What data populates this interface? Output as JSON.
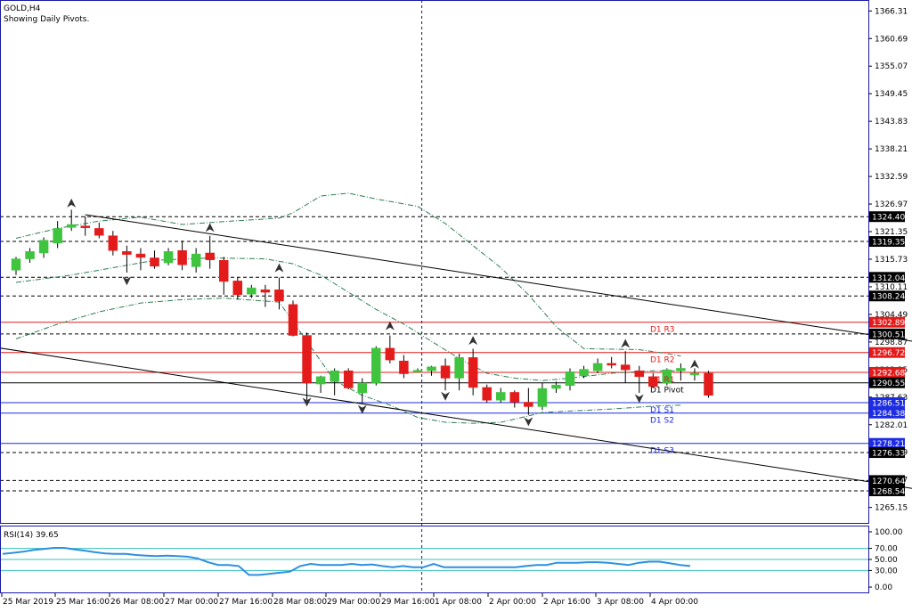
{
  "header": {
    "symbol": "GOLD,H4",
    "subtitle": "Showing Daily Pivots."
  },
  "colors": {
    "bull": "#3fc43f",
    "bear": "#e41b1b",
    "pivot_red": "#e41b1b",
    "pivot_blue": "#1d2ce0",
    "pivot_black": "#000000",
    "band": "#2e7d52",
    "rsi_line": "#2f8fe0",
    "rsi_levels": "#35c0c0",
    "frame": "#1a1aa6",
    "fractal": "#333333"
  },
  "chart_data": {
    "type": "candlestick",
    "symbol": "GOLD",
    "timeframe": "H4",
    "ylim": [
      1262.0,
      1368.0
    ],
    "y_ticks": [
      "1366.31",
      "1360.69",
      "1355.07",
      "1349.45",
      "1343.83",
      "1338.21",
      "1332.59",
      "1326.97",
      "1321.35",
      "1315.73",
      "1310.11",
      "1304.49",
      "1298.87",
      "1293.25",
      "1287.63",
      "1282.01",
      "1276.39",
      "1270.77",
      "1265.15"
    ],
    "x_labels": [
      "25 Mar 2019",
      "25 Mar 16:00",
      "26 Mar 08:00",
      "27 Mar 00:00",
      "27 Mar 16:00",
      "28 Mar 08:00",
      "29 Mar 00:00",
      "29 Mar 16:00",
      "1 Apr 08:00",
      "2 Apr 00:00",
      "2 Apr 16:00",
      "3 Apr 08:00",
      "4 Apr 00:00"
    ],
    "candles": [
      {
        "o": 1313.5,
        "h": 1316.2,
        "l": 1312.5,
        "c": 1315.8
      },
      {
        "o": 1315.8,
        "h": 1318.0,
        "l": 1315.0,
        "c": 1317.3
      },
      {
        "o": 1317.0,
        "h": 1320.2,
        "l": 1316.0,
        "c": 1319.6
      },
      {
        "o": 1319.0,
        "h": 1323.5,
        "l": 1318.0,
        "c": 1322.0
      },
      {
        "o": 1322.2,
        "h": 1325.8,
        "l": 1321.5,
        "c": 1322.8
      },
      {
        "o": 1322.5,
        "h": 1324.5,
        "l": 1320.5,
        "c": 1322.2
      },
      {
        "o": 1322.0,
        "h": 1323.2,
        "l": 1320.0,
        "c": 1320.6
      },
      {
        "o": 1320.5,
        "h": 1321.5,
        "l": 1316.5,
        "c": 1317.5
      },
      {
        "o": 1317.3,
        "h": 1318.5,
        "l": 1313.0,
        "c": 1316.7
      },
      {
        "o": 1316.8,
        "h": 1318.0,
        "l": 1313.5,
        "c": 1316.1
      },
      {
        "o": 1316.0,
        "h": 1317.5,
        "l": 1313.8,
        "c": 1314.3
      },
      {
        "o": 1315.0,
        "h": 1318.0,
        "l": 1314.5,
        "c": 1317.3
      },
      {
        "o": 1317.5,
        "h": 1319.5,
        "l": 1313.5,
        "c": 1314.6
      },
      {
        "o": 1314.2,
        "h": 1318.0,
        "l": 1313.0,
        "c": 1316.8
      },
      {
        "o": 1317.0,
        "h": 1320.5,
        "l": 1313.8,
        "c": 1315.6
      },
      {
        "o": 1315.5,
        "h": 1316.2,
        "l": 1308.5,
        "c": 1311.2
      },
      {
        "o": 1311.3,
        "h": 1312.0,
        "l": 1307.5,
        "c": 1308.5
      },
      {
        "o": 1308.6,
        "h": 1310.5,
        "l": 1307.8,
        "c": 1309.9
      },
      {
        "o": 1309.5,
        "h": 1310.5,
        "l": 1306.0,
        "c": 1309.0
      },
      {
        "o": 1309.5,
        "h": 1312.0,
        "l": 1305.5,
        "c": 1307.2
      },
      {
        "o": 1306.5,
        "h": 1307.3,
        "l": 1300.0,
        "c": 1300.2
      },
      {
        "o": 1300.2,
        "h": 1300.8,
        "l": 1287.0,
        "c": 1290.5
      },
      {
        "o": 1290.3,
        "h": 1292.0,
        "l": 1288.5,
        "c": 1291.8
      },
      {
        "o": 1290.8,
        "h": 1293.5,
        "l": 1288.0,
        "c": 1293.0
      },
      {
        "o": 1293.0,
        "h": 1293.5,
        "l": 1289.2,
        "c": 1289.5
      },
      {
        "o": 1288.5,
        "h": 1291.5,
        "l": 1286.5,
        "c": 1290.5
      },
      {
        "o": 1290.5,
        "h": 1298.0,
        "l": 1290.0,
        "c": 1297.6
      },
      {
        "o": 1297.6,
        "h": 1300.2,
        "l": 1294.5,
        "c": 1295.2
      },
      {
        "o": 1295.0,
        "h": 1296.2,
        "l": 1291.5,
        "c": 1292.4
      },
      {
        "o": 1293.0,
        "h": 1293.5,
        "l": 1292.7,
        "c": 1293.1
      },
      {
        "o": 1293.0,
        "h": 1294.0,
        "l": 1292.0,
        "c": 1293.8
      },
      {
        "o": 1294.0,
        "h": 1295.5,
        "l": 1289.0,
        "c": 1291.5
      },
      {
        "o": 1291.5,
        "h": 1296.5,
        "l": 1289.0,
        "c": 1295.7
      },
      {
        "o": 1295.7,
        "h": 1297.5,
        "l": 1288.0,
        "c": 1289.6
      },
      {
        "o": 1289.6,
        "h": 1290.2,
        "l": 1286.5,
        "c": 1287.0
      },
      {
        "o": 1287.0,
        "h": 1289.5,
        "l": 1286.5,
        "c": 1288.6
      },
      {
        "o": 1288.6,
        "h": 1289.0,
        "l": 1285.5,
        "c": 1286.6
      },
      {
        "o": 1286.6,
        "h": 1289.5,
        "l": 1284.0,
        "c": 1285.7
      },
      {
        "o": 1285.7,
        "h": 1290.5,
        "l": 1285.0,
        "c": 1289.4
      },
      {
        "o": 1289.4,
        "h": 1290.8,
        "l": 1288.5,
        "c": 1290.1
      },
      {
        "o": 1290.0,
        "h": 1293.5,
        "l": 1289.0,
        "c": 1292.8
      },
      {
        "o": 1292.0,
        "h": 1294.0,
        "l": 1291.5,
        "c": 1293.3
      },
      {
        "o": 1293.0,
        "h": 1295.5,
        "l": 1292.5,
        "c": 1294.5
      },
      {
        "o": 1294.5,
        "h": 1295.8,
        "l": 1293.5,
        "c": 1294.2
      },
      {
        "o": 1294.2,
        "h": 1297.0,
        "l": 1290.5,
        "c": 1293.2
      },
      {
        "o": 1293.0,
        "h": 1294.0,
        "l": 1288.5,
        "c": 1291.8
      },
      {
        "o": 1291.8,
        "h": 1292.5,
        "l": 1289.5,
        "c": 1289.8
      },
      {
        "o": 1290.5,
        "h": 1293.5,
        "l": 1290.0,
        "c": 1293.2
      },
      {
        "o": 1293.0,
        "h": 1294.5,
        "l": 1291.0,
        "c": 1293.5
      },
      {
        "o": 1292.5,
        "h": 1293.5,
        "l": 1291.0,
        "c": 1292.5
      },
      {
        "o": 1292.5,
        "h": 1293.0,
        "l": 1287.5,
        "c": 1288.0
      }
    ],
    "horizontal_levels": [
      {
        "price": 1324.4,
        "style": "dash",
        "color": "#000000",
        "tag": "1324.40"
      },
      {
        "price": 1319.35,
        "style": "dash",
        "color": "#000000",
        "tag": "1319.35"
      },
      {
        "price": 1312.04,
        "style": "dash",
        "color": "#000000",
        "tag": "1312.04"
      },
      {
        "price": 1308.24,
        "style": "dash",
        "color": "#000000",
        "tag": "1308.24"
      },
      {
        "price": 1302.89,
        "style": "solid",
        "color": "#e41b1b",
        "tag": "1302.89",
        "name": "D1 R3"
      },
      {
        "price": 1300.51,
        "style": "dash",
        "color": "#000000",
        "tag": "1300.51"
      },
      {
        "price": 1296.72,
        "style": "solid",
        "color": "#e41b1b",
        "tag": "1296.72",
        "name": "D1 R2"
      },
      {
        "price": 1292.68,
        "style": "solid",
        "color": "#e41b1b",
        "tag": "1292.68",
        "name": "D1 R1"
      },
      {
        "price": 1290.55,
        "style": "solid",
        "color": "#000000",
        "tag": "1290.55",
        "name": "D1 Pivot"
      },
      {
        "price": 1286.51,
        "style": "solid",
        "color": "#1d2ce0",
        "tag": "1286.51",
        "name": "D1 S1"
      },
      {
        "price": 1284.38,
        "style": "solid",
        "color": "#1d2ce0",
        "tag": "1284.38",
        "name": "D1 S2"
      },
      {
        "price": 1278.21,
        "style": "solid",
        "color": "#1d2ce0",
        "tag": "1278.21",
        "name": "D1 S3"
      },
      {
        "price": 1276.33,
        "style": "dash",
        "color": "#000000",
        "tag": "1276.33"
      },
      {
        "price": 1270.64,
        "style": "dash",
        "color": "#000000",
        "tag": "1270.64"
      },
      {
        "price": 1268.54,
        "style": "dash",
        "color": "#000000",
        "tag": "1268.54"
      }
    ],
    "trend_lines": [
      {
        "from": {
          "bar": 5,
          "price": 1324.8
        },
        "to": {
          "bar": 68,
          "price": 1297.6
        }
      },
      {
        "from": {
          "bar": -5,
          "price": 1299.3
        },
        "to": {
          "bar": 68,
          "price": 1267.6
        }
      }
    ],
    "bands": {
      "upper": [
        [
          0,
          1320.0
        ],
        [
          3,
          1322.0
        ],
        [
          6,
          1323.5
        ],
        [
          9,
          1324.3
        ],
        [
          12,
          1322.8
        ],
        [
          15,
          1323.4
        ],
        [
          19,
          1324.1
        ],
        [
          20,
          1325.2
        ],
        [
          22,
          1328.6
        ],
        [
          24,
          1329.2
        ],
        [
          26,
          1328.0
        ],
        [
          29,
          1326.5
        ],
        [
          31,
          1323.0
        ],
        [
          33,
          1318.5
        ],
        [
          35,
          1314.0
        ],
        [
          37,
          1308.5
        ],
        [
          39,
          1302.0
        ],
        [
          41,
          1297.5
        ],
        [
          43,
          1297.4
        ],
        [
          45,
          1297.3
        ],
        [
          47,
          1296.5
        ],
        [
          48,
          1296.0
        ]
      ],
      "middle": [
        [
          0,
          1311.0
        ],
        [
          4,
          1312.5
        ],
        [
          7,
          1314.0
        ],
        [
          10,
          1315.5
        ],
        [
          14,
          1316.0
        ],
        [
          18,
          1315.8
        ],
        [
          20,
          1314.8
        ],
        [
          22,
          1312.5
        ],
        [
          24,
          1309.0
        ],
        [
          26,
          1305.5
        ],
        [
          28,
          1302.5
        ],
        [
          30,
          1299.0
        ],
        [
          32,
          1295.5
        ],
        [
          34,
          1292.5
        ],
        [
          36,
          1291.5
        ],
        [
          38,
          1291.0
        ],
        [
          40,
          1291.5
        ],
        [
          43,
          1292.5
        ],
        [
          46,
          1293.0
        ],
        [
          48,
          1293.0
        ]
      ],
      "lower": [
        [
          0,
          1299.5
        ],
        [
          3,
          1302.5
        ],
        [
          6,
          1305.0
        ],
        [
          9,
          1306.8
        ],
        [
          12,
          1307.5
        ],
        [
          15,
          1307.8
        ],
        [
          19,
          1307.0
        ],
        [
          21,
          1299.0
        ],
        [
          23,
          1291.0
        ],
        [
          25,
          1288.0
        ],
        [
          27,
          1286.0
        ],
        [
          29,
          1283.5
        ],
        [
          31,
          1282.5
        ],
        [
          33,
          1282.3
        ],
        [
          35,
          1282.5
        ],
        [
          37,
          1283.8
        ],
        [
          38,
          1284.5
        ],
        [
          40,
          1284.8
        ],
        [
          43,
          1285.2
        ],
        [
          46,
          1285.8
        ],
        [
          48,
          1286.0
        ]
      ]
    },
    "fractals": [
      {
        "bar": 4,
        "price": 1327.0,
        "dir": "up"
      },
      {
        "bar": 8,
        "price": 1311.5,
        "dir": "down"
      },
      {
        "bar": 14,
        "price": 1322.0,
        "dir": "up"
      },
      {
        "bar": 19,
        "price": 1313.8,
        "dir": "up"
      },
      {
        "bar": 21,
        "price": 1286.8,
        "dir": "down"
      },
      {
        "bar": 25,
        "price": 1285.3,
        "dir": "down"
      },
      {
        "bar": 27,
        "price": 1302.0,
        "dir": "up"
      },
      {
        "bar": 31,
        "price": 1288.0,
        "dir": "down"
      },
      {
        "bar": 33,
        "price": 1299.0,
        "dir": "up"
      },
      {
        "bar": 37,
        "price": 1282.8,
        "dir": "down"
      },
      {
        "bar": 44,
        "price": 1298.4,
        "dir": "up"
      },
      {
        "bar": 45,
        "price": 1287.5,
        "dir": "down"
      },
      {
        "bar": 49,
        "price": 1294.2,
        "dir": "up"
      }
    ],
    "vertical_marker": {
      "bar": 29.3
    },
    "rsi": {
      "label": "RSI(14) 39.65",
      "ylim": [
        -8,
        108
      ],
      "ticks": [
        "100.00",
        "70.00",
        "50.00",
        "30.00",
        "0.00"
      ],
      "levels": [
        70,
        50,
        30
      ],
      "values": [
        60,
        62,
        64,
        67,
        69,
        71,
        71,
        68,
        66,
        63,
        61,
        60,
        60,
        58,
        57,
        56,
        57,
        56,
        55,
        52,
        45,
        40,
        40,
        38,
        22,
        22,
        24,
        26,
        28,
        38,
        42,
        40,
        40,
        40,
        42,
        40,
        41,
        38,
        36,
        38,
        36,
        36,
        42,
        36,
        36,
        36,
        36,
        36,
        36,
        36,
        36,
        38,
        40,
        40,
        44,
        44,
        44,
        45,
        45,
        44,
        42,
        40,
        44,
        46,
        46,
        43,
        40,
        38
      ]
    }
  }
}
